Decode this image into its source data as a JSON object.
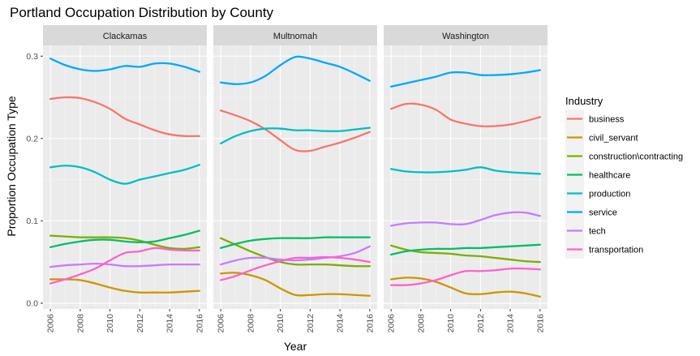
{
  "chart_data": {
    "type": "line",
    "title": "Portland Occupation Distribution by County",
    "xlabel": "Year",
    "ylabel": "Proportion Occupation Type",
    "xlim": [
      2005.5,
      2016.5
    ],
    "ylim": [
      -0.007,
      0.313
    ],
    "x_ticks": [
      2006,
      2008,
      2010,
      2012,
      2014,
      2016
    ],
    "x_tick_labels": [
      "2006",
      "2008",
      "2010",
      "2012",
      "2014",
      "2016"
    ],
    "y_ticks": [
      0.0,
      0.1,
      0.2,
      0.3
    ],
    "y_tick_labels": [
      "0.0",
      "0.1",
      "0.2",
      "0.3"
    ],
    "grid": true,
    "facet": "county",
    "legend": {
      "title": "Industry",
      "position": "right"
    },
    "x": [
      2006,
      2007,
      2008,
      2009,
      2010,
      2011,
      2012,
      2013,
      2014,
      2015,
      2016
    ],
    "series_styles": [
      {
        "name": "business",
        "color": "#F8766D"
      },
      {
        "name": "civil_servant",
        "color": "#CD9600"
      },
      {
        "name": "construction\\contracting",
        "color": "#7CAE00"
      },
      {
        "name": "healthcare",
        "color": "#00BE67"
      },
      {
        "name": "production",
        "color": "#00BFC4"
      },
      {
        "name": "service",
        "color": "#00A9FF"
      },
      {
        "name": "tech",
        "color": "#C77CFF"
      },
      {
        "name": "transportation",
        "color": "#FF61CC"
      }
    ],
    "panels": [
      {
        "county": "Clackamas",
        "series": [
          {
            "name": "business",
            "values": [
              0.248,
              0.25,
              0.249,
              0.244,
              0.236,
              0.224,
              0.217,
              0.21,
              0.205,
              0.203,
              0.203
            ]
          },
          {
            "name": "civil_servant",
            "values": [
              0.029,
              0.029,
              0.028,
              0.024,
              0.019,
              0.015,
              0.013,
              0.013,
              0.013,
              0.014,
              0.015
            ]
          },
          {
            "name": "construction\\contracting",
            "values": [
              0.082,
              0.081,
              0.08,
              0.08,
              0.08,
              0.079,
              0.076,
              0.071,
              0.067,
              0.066,
              0.068
            ]
          },
          {
            "name": "healthcare",
            "values": [
              0.068,
              0.072,
              0.075,
              0.077,
              0.077,
              0.075,
              0.074,
              0.075,
              0.079,
              0.083,
              0.088
            ]
          },
          {
            "name": "production",
            "values": [
              0.165,
              0.167,
              0.165,
              0.159,
              0.15,
              0.145,
              0.15,
              0.154,
              0.158,
              0.162,
              0.168
            ]
          },
          {
            "name": "service",
            "values": [
              0.297,
              0.289,
              0.284,
              0.282,
              0.284,
              0.288,
              0.287,
              0.291,
              0.291,
              0.287,
              0.281
            ]
          },
          {
            "name": "tech",
            "values": [
              0.044,
              0.046,
              0.047,
              0.048,
              0.047,
              0.045,
              0.045,
              0.046,
              0.047,
              0.047,
              0.047
            ]
          },
          {
            "name": "transportation",
            "values": [
              0.024,
              0.029,
              0.035,
              0.042,
              0.052,
              0.061,
              0.063,
              0.067,
              0.065,
              0.064,
              0.064
            ]
          }
        ]
      },
      {
        "county": "Multnomah",
        "series": [
          {
            "name": "business",
            "values": [
              0.234,
              0.228,
              0.221,
              0.211,
              0.198,
              0.186,
              0.185,
              0.19,
              0.195,
              0.201,
              0.208
            ]
          },
          {
            "name": "civil_servant",
            "values": [
              0.036,
              0.037,
              0.034,
              0.028,
              0.018,
              0.01,
              0.01,
              0.011,
              0.011,
              0.01,
              0.009
            ]
          },
          {
            "name": "construction\\contracting",
            "values": [
              0.079,
              0.071,
              0.063,
              0.056,
              0.05,
              0.047,
              0.047,
              0.047,
              0.046,
              0.045,
              0.045
            ]
          },
          {
            "name": "healthcare",
            "values": [
              0.067,
              0.072,
              0.076,
              0.078,
              0.079,
              0.079,
              0.079,
              0.08,
              0.08,
              0.08,
              0.08
            ]
          },
          {
            "name": "production",
            "values": [
              0.194,
              0.203,
              0.209,
              0.212,
              0.212,
              0.21,
              0.21,
              0.209,
              0.209,
              0.211,
              0.213
            ]
          },
          {
            "name": "service",
            "values": [
              0.268,
              0.266,
              0.268,
              0.276,
              0.289,
              0.299,
              0.297,
              0.292,
              0.287,
              0.279,
              0.27
            ]
          },
          {
            "name": "tech",
            "values": [
              0.047,
              0.052,
              0.055,
              0.055,
              0.053,
              0.052,
              0.053,
              0.055,
              0.057,
              0.061,
              0.069
            ]
          },
          {
            "name": "transportation",
            "values": [
              0.028,
              0.033,
              0.04,
              0.046,
              0.051,
              0.055,
              0.055,
              0.056,
              0.055,
              0.053,
              0.05
            ]
          }
        ]
      },
      {
        "county": "Washington",
        "series": [
          {
            "name": "business",
            "values": [
              0.236,
              0.242,
              0.241,
              0.235,
              0.223,
              0.218,
              0.215,
              0.215,
              0.217,
              0.221,
              0.226
            ]
          },
          {
            "name": "civil_servant",
            "values": [
              0.029,
              0.031,
              0.03,
              0.026,
              0.019,
              0.012,
              0.011,
              0.013,
              0.014,
              0.012,
              0.008
            ]
          },
          {
            "name": "construction\\contracting",
            "values": [
              0.07,
              0.065,
              0.062,
              0.061,
              0.06,
              0.058,
              0.057,
              0.055,
              0.053,
              0.051,
              0.05
            ]
          },
          {
            "name": "healthcare",
            "values": [
              0.059,
              0.063,
              0.065,
              0.066,
              0.066,
              0.067,
              0.067,
              0.068,
              0.069,
              0.07,
              0.071
            ]
          },
          {
            "name": "production",
            "values": [
              0.163,
              0.16,
              0.159,
              0.159,
              0.16,
              0.162,
              0.165,
              0.161,
              0.159,
              0.158,
              0.157
            ]
          },
          {
            "name": "service",
            "values": [
              0.263,
              0.267,
              0.271,
              0.275,
              0.28,
              0.28,
              0.277,
              0.277,
              0.278,
              0.28,
              0.283
            ]
          },
          {
            "name": "tech",
            "values": [
              0.094,
              0.097,
              0.098,
              0.098,
              0.096,
              0.096,
              0.101,
              0.107,
              0.11,
              0.11,
              0.106
            ]
          },
          {
            "name": "transportation",
            "values": [
              0.022,
              0.022,
              0.024,
              0.028,
              0.034,
              0.039,
              0.039,
              0.04,
              0.042,
              0.042,
              0.041
            ]
          }
        ]
      }
    ]
  }
}
